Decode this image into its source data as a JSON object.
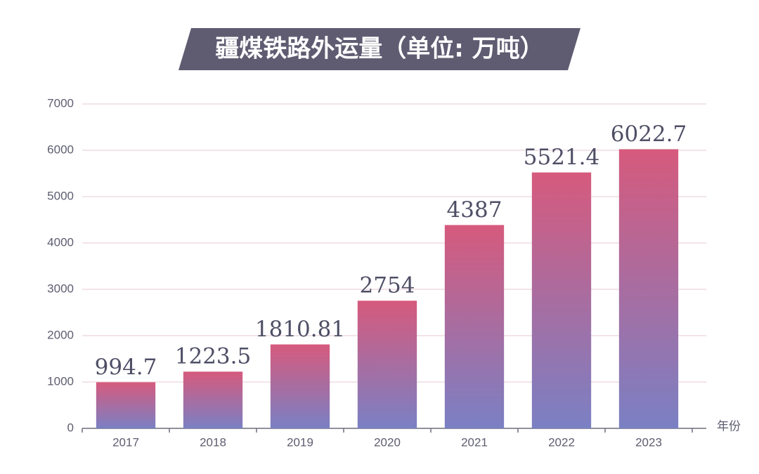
{
  "chart_data": {
    "type": "bar",
    "title": "疆煤铁路外运量（单位: 万吨）",
    "x_label": "年份",
    "categories": [
      "2017",
      "2018",
      "2019",
      "2020",
      "2021",
      "2022",
      "2023"
    ],
    "values": [
      994.7,
      1223.5,
      1810.81,
      2754,
      4387,
      5521.4,
      6022.7
    ],
    "gradient": [
      "#d65a7d",
      "#7a80c4"
    ],
    "ylim": [
      0,
      7000
    ],
    "yticks": [
      0,
      1000,
      2000,
      3000,
      4000,
      5000,
      6000,
      7000
    ],
    "grid": true
  }
}
